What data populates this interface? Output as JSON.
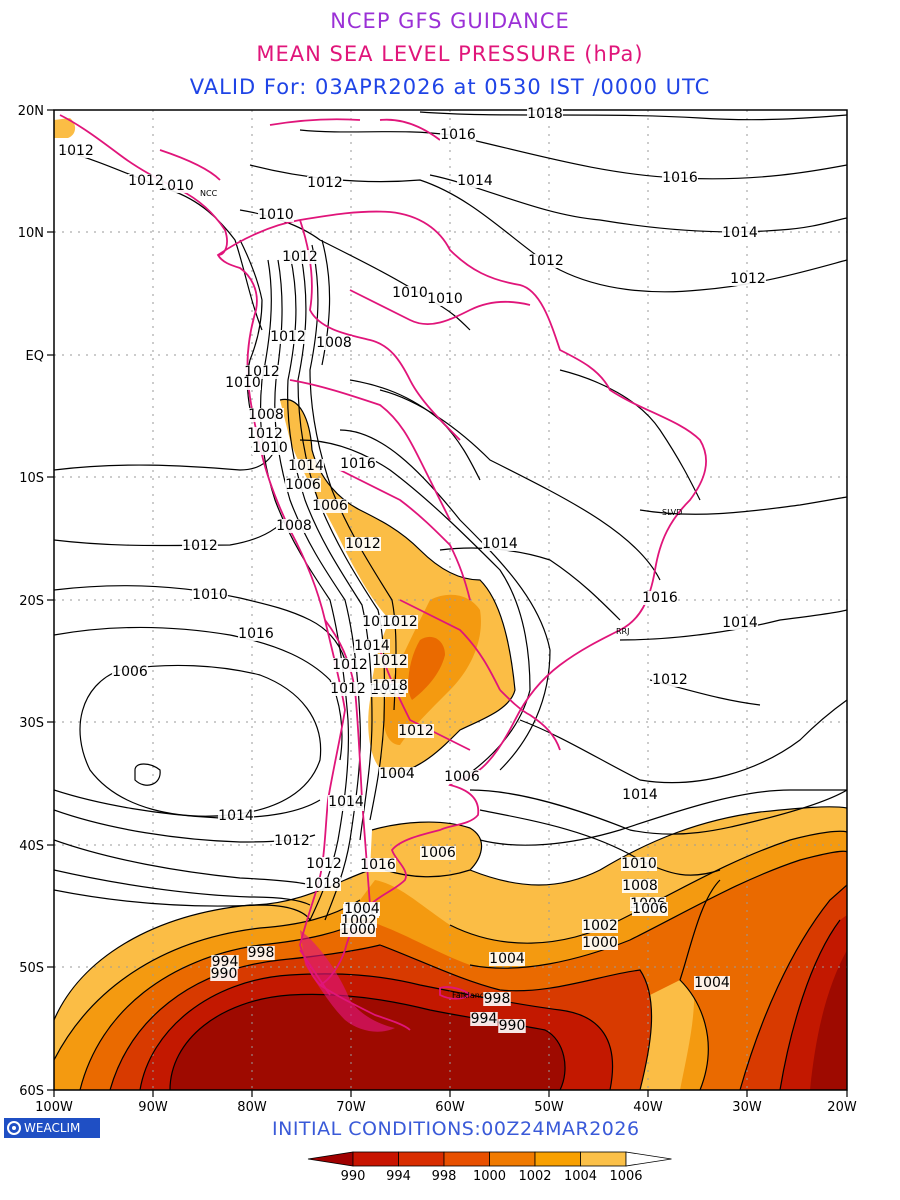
{
  "header": {
    "line1": "NCEP GFS GUIDANCE",
    "line2": "MEAN SEA LEVEL PRESSURE (hPa)",
    "line3": "VALID For: 03APR2026 at 0530 IST /0000 UTC"
  },
  "map": {
    "lat_labels": [
      "20N",
      "10N",
      "EQ",
      "10S",
      "20S",
      "30S",
      "40S",
      "50S",
      "60S"
    ],
    "lon_labels": [
      "100W",
      "90W",
      "80W",
      "70W",
      "60W",
      "50W",
      "40W",
      "30W",
      "20W"
    ],
    "station_labels": [
      "NCC",
      "SLVD",
      "RRJ",
      "Falkland"
    ],
    "contour_labels": [
      "1018",
      "1016",
      "1014",
      "1016",
      "1012",
      "1010",
      "1012",
      "1010",
      "1012",
      "1014",
      "1012",
      "1012",
      "1010",
      "1010",
      "1012",
      "1012",
      "1008",
      "1012",
      "1010",
      "1008",
      "1012",
      "1010",
      "1014",
      "1016",
      "1006",
      "1006",
      "1008",
      "1012",
      "1012",
      "1014",
      "1010",
      "1012",
      "1012",
      "1012",
      "1012",
      "1014",
      "1016",
      "1012",
      "1008",
      "1006",
      "1014",
      "1012",
      "1018",
      "1010",
      "1012",
      "1004",
      "1006",
      "1008",
      "1012",
      "1014",
      "1018",
      "1016",
      "1006",
      "1006",
      "1010",
      "1014",
      "1008",
      "1006",
      "1004",
      "1002",
      "1000",
      "1004",
      "1002",
      "1000",
      "998",
      "994",
      "990",
      "1004",
      "998",
      "994",
      "990",
      "1012",
      "1014",
      "1016"
    ]
  },
  "footer": {
    "logo": "WEACLIM",
    "initial_conditions": "INITIAL  CONDITIONS:00Z24MAR2026"
  },
  "colorbar": {
    "labels": [
      "990",
      "994",
      "998",
      "1000",
      "1002",
      "1004",
      "1006"
    ],
    "colors": [
      "#c81400",
      "#d82d00",
      "#e85000",
      "#f07a00",
      "#f8a000",
      "#fbc048",
      "#ffffff"
    ],
    "left_color": "#a00000"
  },
  "fill_colors": {
    "lt990": "#9e0a00",
    "990_994": "#c31800",
    "994_998": "#d83a00",
    "998_1000": "#e96200",
    "1000_1002": "#f48c00",
    "1002_1004": "#f9a718",
    "1004_1006": "#fbbd45"
  },
  "boundary_color": "#e0157a"
}
